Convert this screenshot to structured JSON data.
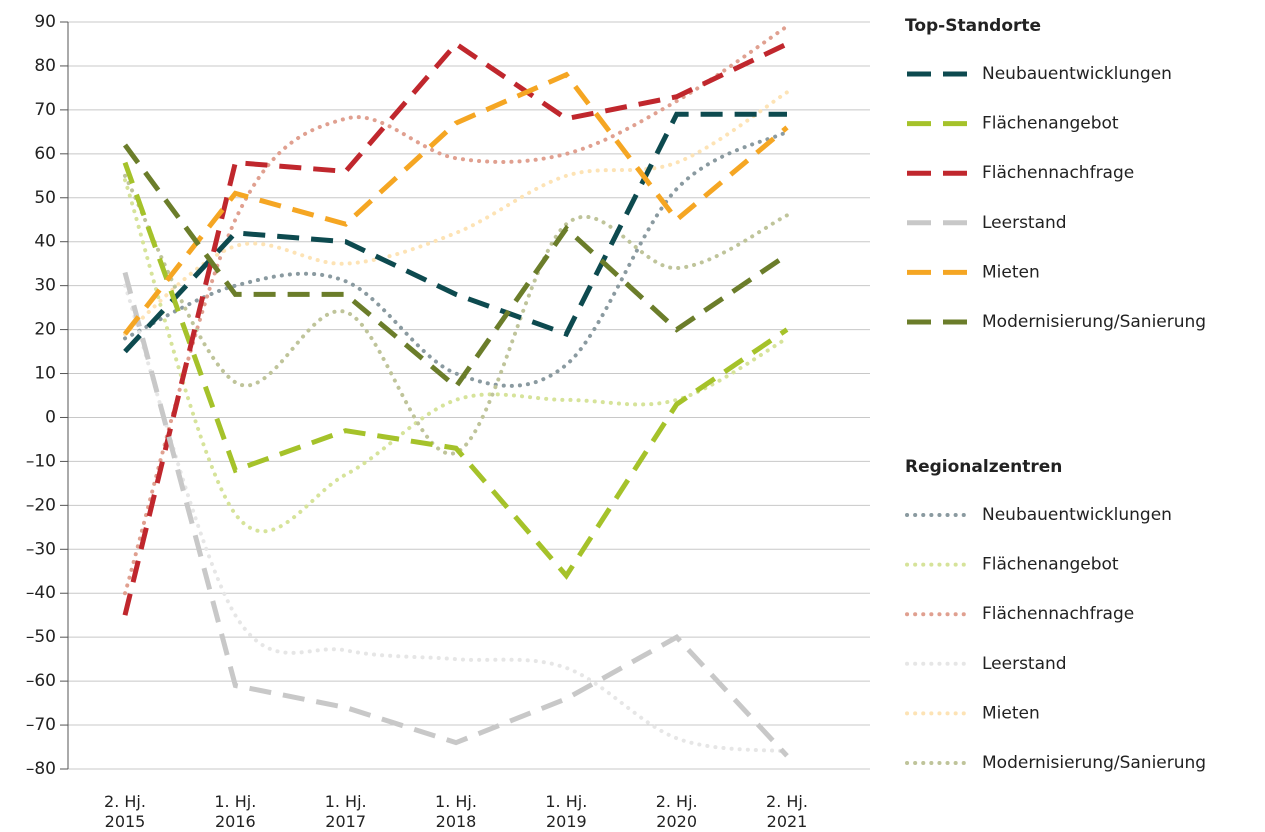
{
  "chart_data": {
    "type": "line",
    "categories": [
      "2. Hj. 2015",
      "1. Hj. 2016",
      "1. Hj. 2017",
      "1. Hj. 2018",
      "1. Hj. 2019",
      "2. Hj. 2020",
      "2. Hj. 2021"
    ],
    "ylim": [
      -80,
      90
    ],
    "yticks": [
      {
        "value": -80,
        "label": "–80"
      },
      {
        "value": -70,
        "label": "–70"
      },
      {
        "value": -60,
        "label": "–60"
      },
      {
        "value": -50,
        "label": "–50"
      },
      {
        "value": -40,
        "label": "–40"
      },
      {
        "value": -30,
        "label": "–30"
      },
      {
        "value": -20,
        "label": "–20"
      },
      {
        "value": -10,
        "label": "–10"
      },
      0,
      10,
      20,
      30,
      40,
      50,
      60,
      70,
      80,
      90
    ],
    "grid": true,
    "legend_titles": [
      "Top-Standorte",
      "Regionalzentren"
    ],
    "series": [
      {
        "name": "Neubauentwicklungen",
        "color": "#0d4a4f",
        "style": "dashed",
        "values": [
          15,
          42,
          40,
          28,
          19,
          69,
          69
        ]
      },
      {
        "name": "Flächenangebot",
        "color": "#a5c22a",
        "style": "dashed",
        "values": [
          58,
          -12,
          -3,
          -7,
          -36,
          3,
          20
        ]
      },
      {
        "name": "Flächennachfrage",
        "color": "#c0272d",
        "style": "dashed",
        "values": [
          -45,
          58,
          56,
          85,
          68,
          73,
          85
        ]
      },
      {
        "name": "Leerstand",
        "color": "#c8c8c8",
        "style": "dashed",
        "values": [
          33,
          -61,
          -66,
          -74,
          -64,
          -50,
          -77
        ]
      },
      {
        "name": "Mieten",
        "color": "#f5a623",
        "style": "dashed",
        "values": [
          19,
          51,
          44,
          67,
          78,
          45,
          66
        ]
      },
      {
        "name": "Modernisierung/Sanierung",
        "color": "#6b7d2a",
        "style": "dashed",
        "values": [
          62,
          28,
          28,
          7,
          43,
          20,
          37
        ]
      },
      {
        "name": "Neubauentwicklungen",
        "color": "#8a9aa0",
        "style": "dotted",
        "values": [
          18,
          30,
          31,
          10,
          12,
          52,
          65
        ]
      },
      {
        "name": "Flächenangebot",
        "color": "#d6e39a",
        "style": "dotted",
        "values": [
          54,
          -22,
          -13,
          4,
          4,
          4,
          18
        ]
      },
      {
        "name": "Flächennachfrage",
        "color": "#e0a090",
        "style": "dotted",
        "values": [
          -40,
          45,
          68,
          59,
          60,
          72,
          89
        ]
      },
      {
        "name": "Leerstand",
        "color": "#e6e6e6",
        "style": "dotted",
        "values": [
          30,
          -45,
          -53,
          -55,
          -57,
          -73,
          -76
        ]
      },
      {
        "name": "Mieten",
        "color": "#fde3b5",
        "style": "dotted",
        "values": [
          19,
          39,
          35,
          42,
          55,
          58,
          74
        ]
      },
      {
        "name": "Modernisierung/Sanierung",
        "color": "#bfc49a",
        "style": "dotted",
        "values": [
          55,
          8,
          24,
          -8,
          44,
          34,
          46
        ]
      }
    ]
  }
}
